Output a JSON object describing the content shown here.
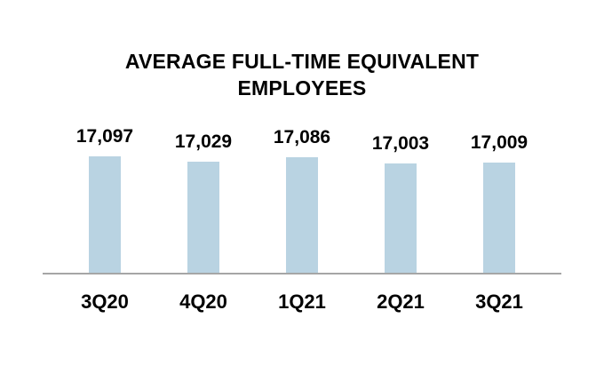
{
  "page": {
    "background_color": "#ffffff",
    "text_color": "#000000"
  },
  "chart_data": {
    "type": "bar",
    "title": "AVERAGE FULL-TIME EQUIVALENT EMPLOYEES",
    "categories": [
      "3Q20",
      "4Q20",
      "1Q21",
      "2Q21",
      "3Q21"
    ],
    "values": [
      17097,
      17029,
      17086,
      17003,
      17009
    ],
    "value_labels": [
      "17,097",
      "17,029",
      "17,086",
      "17,003",
      "17,009"
    ],
    "series": [
      {
        "name": "Average full-time equivalent employees",
        "values": [
          17097,
          17029,
          17086,
          17003,
          17009
        ]
      }
    ],
    "xlabel": "",
    "ylabel": "",
    "ylim": [
      15550,
      17250
    ],
    "grid": false,
    "legend": false,
    "y_axis_visible": false,
    "x_axis_line": true,
    "data_labels_position": "above-bars",
    "bar_color": "#B9D3E2",
    "axis_line_color": "#A6A6A6"
  }
}
